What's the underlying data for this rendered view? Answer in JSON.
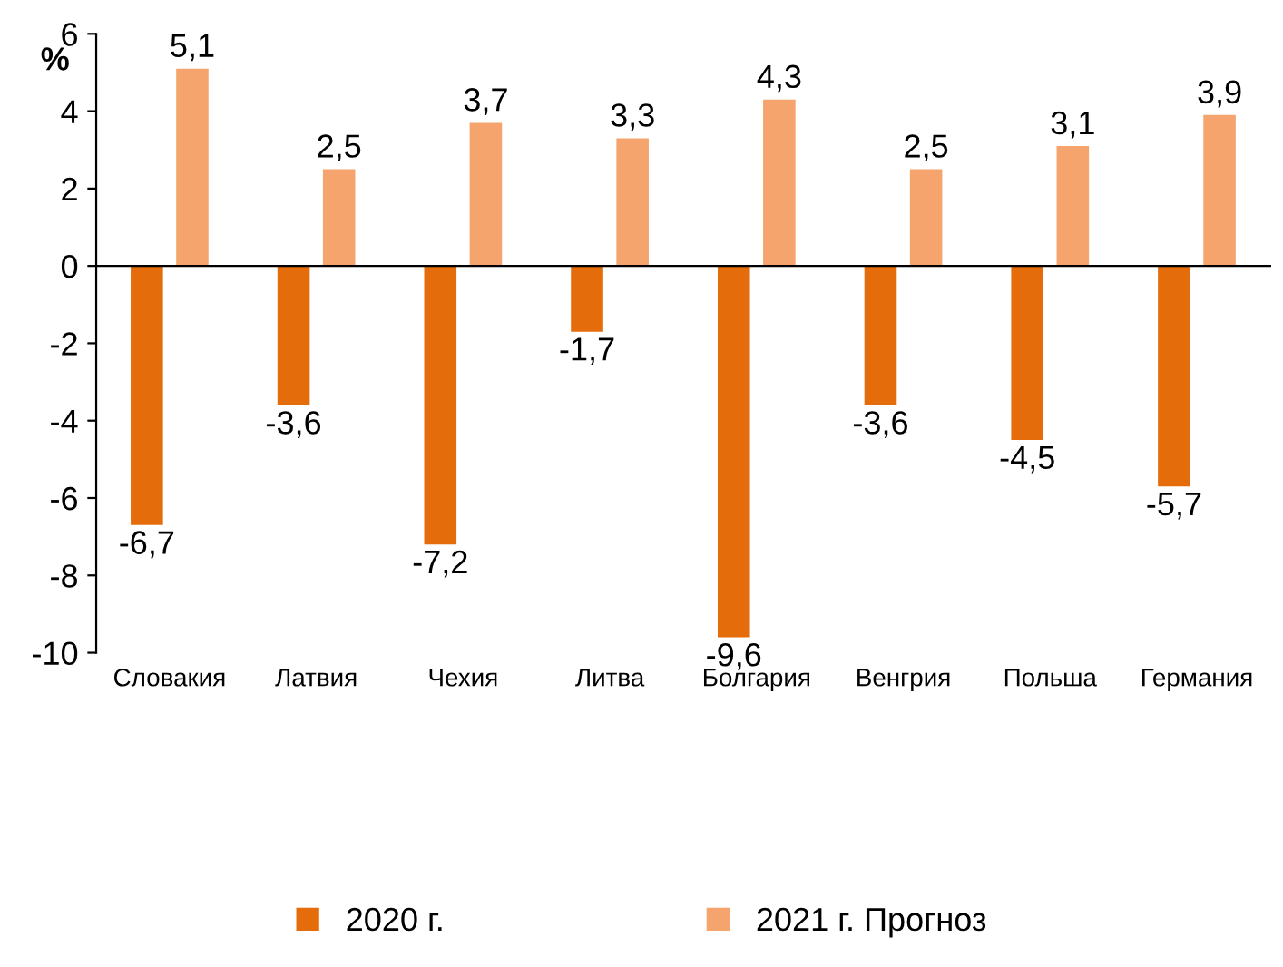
{
  "chart_data": {
    "type": "bar",
    "ylabel": "%",
    "categories": [
      "Словакия",
      "Латвия",
      "Чехия",
      "Литва",
      "Болгария",
      "Венгрия",
      "Польша",
      "Германия"
    ],
    "series": [
      {
        "name": "2020 г.",
        "color": "#e46c0a",
        "values": [
          -6.7,
          -3.6,
          -7.2,
          -1.7,
          -9.6,
          -3.6,
          -4.5,
          -5.7
        ],
        "value_labels": [
          "-6,7",
          "-3,6",
          "-7,2",
          "-1,7",
          "-9,6",
          "-3,6",
          "-4,5",
          "-5,7"
        ]
      },
      {
        "name": "2021 г. Прогноз",
        "color": "#f4a46c",
        "values": [
          5.1,
          2.5,
          3.7,
          3.3,
          4.3,
          2.5,
          3.1,
          3.9
        ],
        "value_labels": [
          "5,1",
          "2,5",
          "3,7",
          "3,3",
          "4,3",
          "2,5",
          "3,1",
          "3,9"
        ]
      }
    ],
    "ylim": [
      -10,
      6
    ],
    "yticks": [
      -10,
      -8,
      -6,
      -4,
      -2,
      0,
      2,
      4,
      6
    ],
    "legend": "bottom"
  }
}
